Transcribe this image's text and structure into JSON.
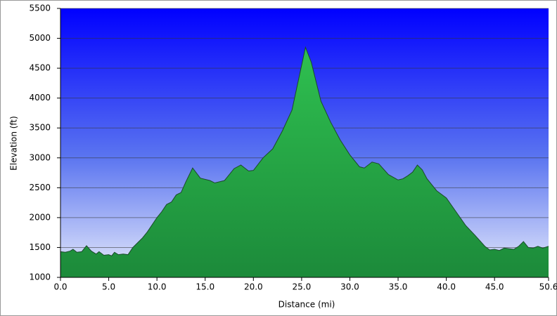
{
  "chart_data": {
    "type": "area",
    "x_label": "Distance    (mi)",
    "y_label": "Elevation (ft)",
    "x": [
      0,
      0.5,
      1,
      1.3,
      1.7,
      2.2,
      2.7,
      3.2,
      3.7,
      4,
      4.5,
      5,
      5.3,
      5.6,
      6,
      6.5,
      7,
      7.5,
      8,
      8.5,
      9,
      10,
      10.5,
      11,
      11.5,
      12,
      12.5,
      13,
      13.7,
      14.5,
      15.5,
      16,
      17,
      18,
      18.7,
      19.5,
      20,
      21,
      22,
      23,
      24,
      24.8,
      25.4,
      26,
      27,
      28,
      29,
      30,
      31,
      31.5,
      32.3,
      33,
      34,
      35,
      35.5,
      36,
      36.5,
      37,
      37.5,
      38,
      39,
      40,
      41,
      42,
      43,
      44,
      44.5,
      45,
      45.5,
      46,
      47,
      47.5,
      48,
      48.5,
      49,
      49.5,
      50,
      50.6
    ],
    "values": [
      1430,
      1420,
      1440,
      1470,
      1420,
      1430,
      1530,
      1440,
      1390,
      1430,
      1370,
      1380,
      1360,
      1420,
      1380,
      1390,
      1380,
      1500,
      1580,
      1660,
      1760,
      2000,
      2100,
      2220,
      2260,
      2380,
      2420,
      2600,
      2830,
      2660,
      2620,
      2580,
      2620,
      2820,
      2880,
      2780,
      2790,
      3000,
      3150,
      3450,
      3800,
      4400,
      4850,
      4600,
      3950,
      3600,
      3300,
      3050,
      2850,
      2830,
      2930,
      2900,
      2720,
      2630,
      2650,
      2700,
      2760,
      2880,
      2800,
      2650,
      2450,
      2330,
      2100,
      1870,
      1700,
      1520,
      1460,
      1470,
      1450,
      1490,
      1470,
      1520,
      1600,
      1500,
      1490,
      1520,
      1490,
      1520
    ],
    "color": "#22a845",
    "xlim": [
      0,
      50.6
    ],
    "ylim": [
      1000,
      5500
    ],
    "xticks": [
      {
        "value": 0,
        "label": "0.0"
      },
      {
        "value": 5,
        "label": "5.0"
      },
      {
        "value": 10,
        "label": "10.0"
      },
      {
        "value": 15,
        "label": "15.0"
      },
      {
        "value": 20,
        "label": "20.0"
      },
      {
        "value": 25,
        "label": "25.0"
      },
      {
        "value": 30,
        "label": "30.0"
      },
      {
        "value": 35,
        "label": "35.0"
      },
      {
        "value": 40,
        "label": "40.0"
      },
      {
        "value": 45,
        "label": "45.0"
      },
      50.6
    ],
    "yticks": [
      1000,
      1500,
      2000,
      2500,
      3000,
      3500,
      4000,
      4500,
      5000,
      5500
    ],
    "grid": true
  }
}
